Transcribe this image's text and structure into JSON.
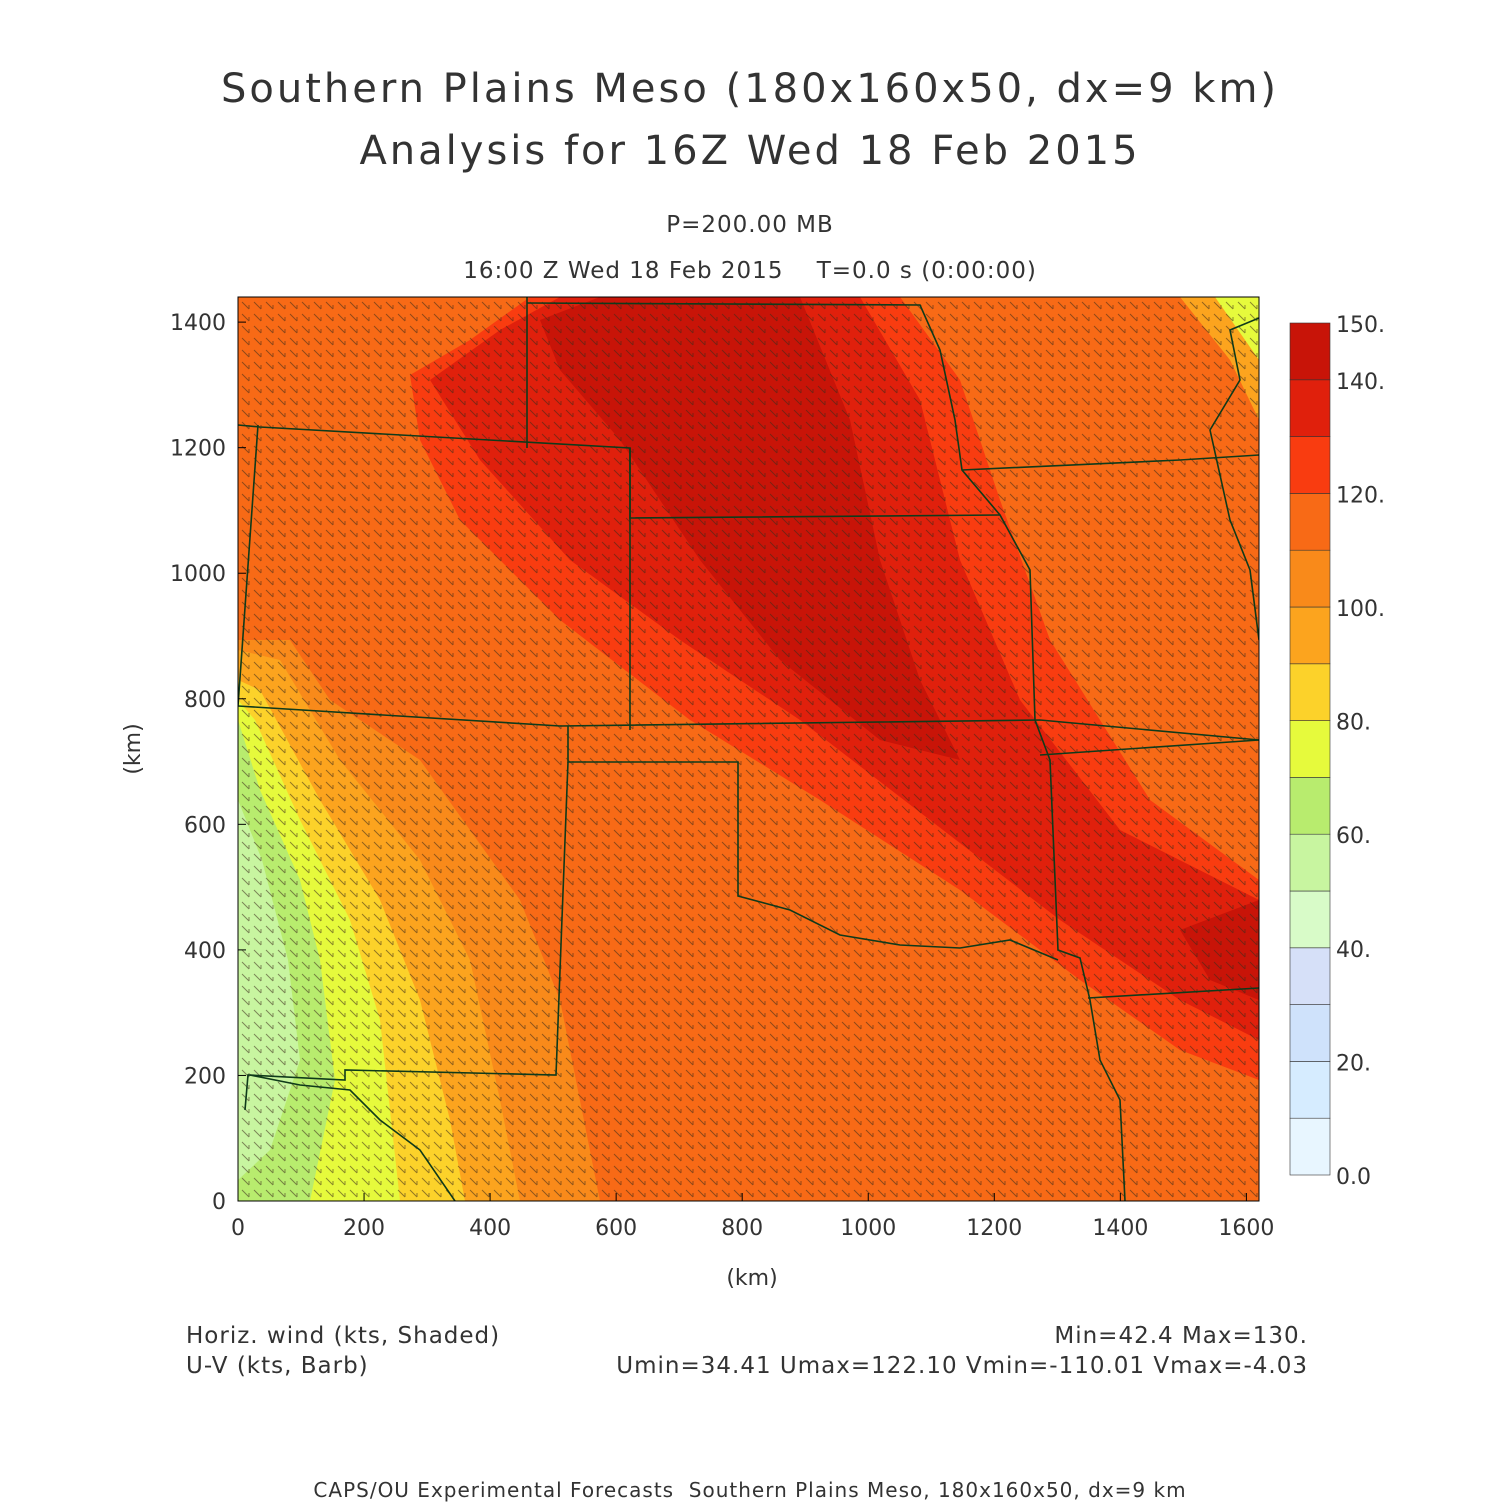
{
  "header": {
    "title_line1": "Southern Plains Meso (180x160x50, dx=9 km)",
    "title_line2": "Analysis for 16Z Wed 18 Feb 2015",
    "pressure": "P=200.00 MB",
    "time": "16:00 Z Wed 18 Feb 2015    T=0.0 s (0:00:00)"
  },
  "chart_data": {
    "type": "heatmap",
    "xlabel": "(km)",
    "ylabel": "(km)",
    "xlim": [
      0,
      1620
    ],
    "ylim": [
      0,
      1440
    ],
    "x_ticks": [
      "0",
      "200",
      "400",
      "600",
      "800",
      "1000",
      "1200",
      "1400",
      "1600"
    ],
    "y_ticks": [
      "0",
      "200",
      "400",
      "600",
      "800",
      "1000",
      "1200",
      "1400"
    ],
    "colorbar": {
      "labels": [
        "0.0",
        "20.",
        "40.",
        "60.",
        "80.",
        "100.",
        "120.",
        "140.",
        "150."
      ],
      "levels": [
        0,
        10,
        20,
        30,
        40,
        50,
        60,
        70,
        80,
        90,
        100,
        110,
        120,
        130,
        140,
        150
      ],
      "colors": [
        "#e8f6ff",
        "#d6ecff",
        "#cfe2fb",
        "#d6e0f8",
        "#d8fbc8",
        "#c8f5a0",
        "#b8ec6e",
        "#e6fa3c",
        "#fcd22a",
        "#fca41e",
        "#f98a1a",
        "#f86a16",
        "#f93c10",
        "#e0200c",
        "#c81408",
        "#b00000"
      ]
    },
    "field_stats": {
      "min": 42.4,
      "max": 130.0
    }
  },
  "legend": {
    "shaded_label": "Horiz. wind (kts, Shaded)",
    "barb_label": "U-V (kts, Barb)",
    "minmax": "Min=42.4 Max=130.",
    "uv_stats": "Umin=34.41 Umax=122.10 Vmin=-110.01 Vmax=-4.03"
  },
  "footer": "CAPS/OU Experimental Forecasts  Southern Plains Meso, 180x160x50, dx=9 km"
}
